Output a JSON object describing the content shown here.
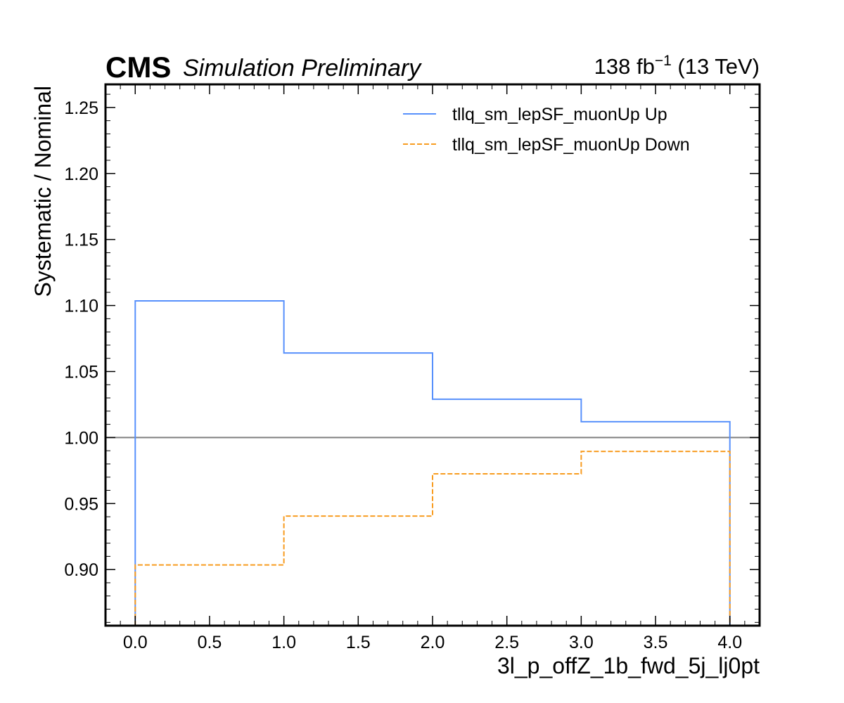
{
  "header": {
    "experiment": "CMS",
    "status": "Simulation Preliminary",
    "lumi_value": "138 fb",
    "lumi_exp": "−1",
    "lumi_energy": " (13 TeV)"
  },
  "chart_data": {
    "type": "line",
    "style": "step histogram",
    "xlabel": "3l_p_offZ_1b_fwd_5j_lj0pt",
    "ylabel": "Systematic / Nominal",
    "xlim": [
      -0.2,
      4.2
    ],
    "ylim": [
      0.8575,
      1.2675
    ],
    "xticks": [
      0.0,
      0.5,
      1.0,
      1.5,
      2.0,
      2.5,
      3.0,
      3.5,
      4.0
    ],
    "xtick_labels": [
      "0.0",
      "0.5",
      "1.0",
      "1.5",
      "2.0",
      "2.5",
      "3.0",
      "3.5",
      "4.0"
    ],
    "yticks": [
      0.9,
      0.95,
      1.0,
      1.05,
      1.1,
      1.15,
      1.2,
      1.25
    ],
    "ytick_labels": [
      "0.90",
      "0.95",
      "1.00",
      "1.05",
      "1.10",
      "1.15",
      "1.20",
      "1.25"
    ],
    "bin_edges": [
      0,
      1,
      2,
      3,
      4
    ],
    "reference_line": {
      "y": 1.0,
      "color": "#808080"
    },
    "series": [
      {
        "name": "tllq_sm_lepSF_muonUp Up",
        "color": "#5790fc",
        "dashed": false,
        "values": [
          1.1035,
          1.064,
          1.029,
          1.012
        ]
      },
      {
        "name": "tllq_sm_lepSF_muonUp Down",
        "color": "#f89c20",
        "dashed": true,
        "values": [
          0.9035,
          0.9405,
          0.9725,
          0.9895
        ]
      }
    ],
    "legend_position": "top-right",
    "grid": false
  }
}
